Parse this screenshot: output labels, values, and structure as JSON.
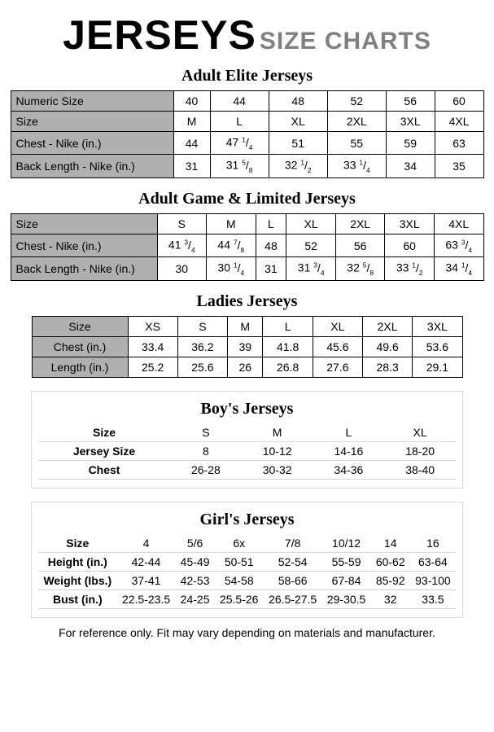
{
  "header": {
    "big": "JERSEYS",
    "sub": "SIZE CHARTS"
  },
  "footnote": "For reference only.  Fit may vary depending on materials and manufacturer.",
  "t1": {
    "title": "Adult Elite Jerseys",
    "rows": [
      {
        "label": "Numeric Size",
        "cells": [
          "40",
          "44",
          "48",
          "52",
          "56",
          "60"
        ]
      },
      {
        "label": "Size",
        "cells": [
          "M",
          "L",
          "XL",
          "2XL",
          "3XL",
          "4XL"
        ]
      },
      {
        "label": "Chest - Nike (in.)",
        "cells": [
          "44",
          [
            "47",
            "1/4"
          ],
          "51",
          "55",
          "59",
          "63"
        ]
      },
      {
        "label": "Back Length - Nike (in.)",
        "cells": [
          "31",
          [
            "31",
            "5/8"
          ],
          [
            "32",
            "1/2"
          ],
          [
            "33",
            "1/4"
          ],
          "34",
          "35"
        ]
      }
    ]
  },
  "t2": {
    "title": "Adult Game & Limited Jerseys",
    "rows": [
      {
        "label": "Size",
        "cells": [
          "S",
          "M",
          "L",
          "XL",
          "2XL",
          "3XL",
          "4XL"
        ]
      },
      {
        "label": "Chest - Nike (in.)",
        "cells": [
          [
            "41",
            "3/4"
          ],
          [
            "44",
            "7/8"
          ],
          "48",
          "52",
          "56",
          "60",
          [
            "63",
            "3/4"
          ]
        ]
      },
      {
        "label": "Back Length - Nike (in.)",
        "cells": [
          "30",
          [
            "30",
            "1/4"
          ],
          "31",
          [
            "31",
            "3/4"
          ],
          [
            "32",
            "5/8"
          ],
          [
            "33",
            "1/2"
          ],
          [
            "34",
            "1/4"
          ]
        ]
      }
    ]
  },
  "t3": {
    "title": "Ladies Jerseys",
    "rows": [
      {
        "label": "Size",
        "cells": [
          "XS",
          "S",
          "M",
          "L",
          "XL",
          "2XL",
          "3XL"
        ]
      },
      {
        "label": "Chest (in.)",
        "cells": [
          "33.4",
          "36.2",
          "39",
          "41.8",
          "45.6",
          "49.6",
          "53.6"
        ]
      },
      {
        "label": "Length (in.)",
        "cells": [
          "25.2",
          "25.6",
          "26",
          "26.8",
          "27.6",
          "28.3",
          "29.1"
        ]
      }
    ]
  },
  "t4": {
    "title": "Boy's Jerseys",
    "rows": [
      {
        "label": "Size",
        "cells": [
          "S",
          "M",
          "L",
          "XL"
        ]
      },
      {
        "label": "Jersey Size",
        "cells": [
          "8",
          "10-12",
          "14-16",
          "18-20"
        ]
      },
      {
        "label": "Chest",
        "cells": [
          "26-28",
          "30-32",
          "34-36",
          "38-40"
        ]
      }
    ]
  },
  "t5": {
    "title": "Girl's Jerseys",
    "rows": [
      {
        "label": "Size",
        "cells": [
          "4",
          "5/6",
          "6x",
          "7/8",
          "10/12",
          "14",
          "16"
        ]
      },
      {
        "label": "Height (in.)",
        "cells": [
          "42-44",
          "45-49",
          "50-51",
          "52-54",
          "55-59",
          "60-62",
          "63-64"
        ]
      },
      {
        "label": "Weight (Ibs.)",
        "cells": [
          "37-41",
          "42-53",
          "54-58",
          "58-66",
          "67-84",
          "85-92",
          "93-100"
        ]
      },
      {
        "label": "Bust (in.)",
        "cells": [
          "22.5-23.5",
          "24-25",
          "25.5-26",
          "26.5-27.5",
          "29-30.5",
          "32",
          "33.5"
        ]
      }
    ]
  }
}
